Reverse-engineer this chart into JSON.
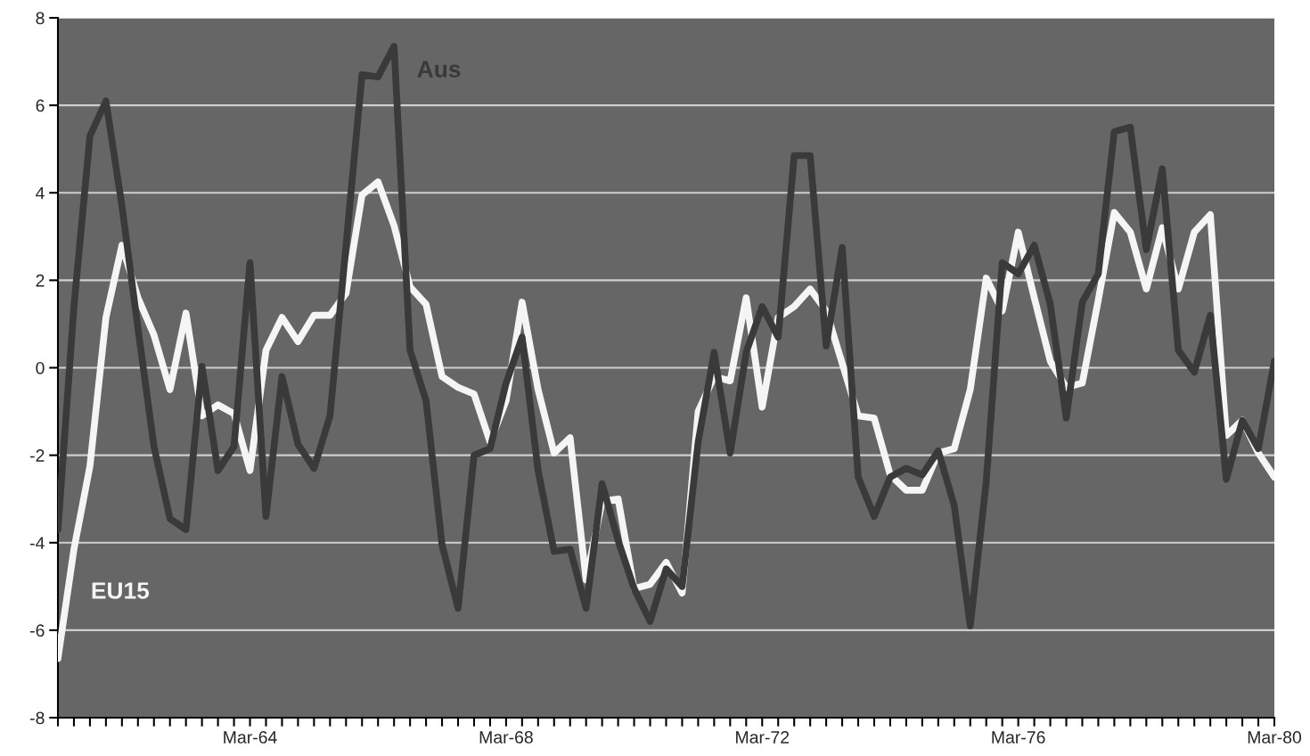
{
  "chart_data": {
    "type": "line",
    "categories": [
      null,
      null,
      null,
      null,
      null,
      null,
      null,
      null,
      null,
      null,
      null,
      null,
      "Mar-64",
      null,
      null,
      null,
      null,
      null,
      null,
      null,
      null,
      null,
      null,
      null,
      null,
      null,
      null,
      null,
      "Mar-68",
      null,
      null,
      null,
      null,
      null,
      null,
      null,
      null,
      null,
      null,
      null,
      null,
      null,
      null,
      null,
      "Mar-72",
      null,
      null,
      null,
      null,
      null,
      null,
      null,
      null,
      null,
      null,
      null,
      null,
      null,
      null,
      null,
      "Mar-76",
      null,
      null,
      null,
      null,
      null,
      null,
      null,
      null,
      null,
      null,
      null,
      null,
      null,
      null,
      null,
      "Mar-80"
    ],
    "series": [
      {
        "name": "Aus",
        "color": "#3a3a3a",
        "values": [
          -3.7,
          1.4,
          5.3,
          6.1,
          3.7,
          0.9,
          -1.8,
          -3.45,
          -3.7,
          0.03,
          -2.35,
          -1.8,
          2.4,
          -3.4,
          -0.2,
          -1.75,
          -2.3,
          -1.1,
          2.8,
          6.7,
          6.65,
          7.35,
          0.4,
          -0.75,
          -4.05,
          -5.5,
          -2.0,
          -1.85,
          -0.35,
          0.7,
          -2.35,
          -4.2,
          -4.15,
          -5.5,
          -2.65,
          -3.95,
          -5.05,
          -5.8,
          -4.6,
          -5.0,
          -1.7,
          0.35,
          -1.95,
          0.35,
          1.4,
          0.7,
          4.85,
          4.85,
          0.5,
          2.75,
          -2.5,
          -3.4,
          -2.5,
          -2.3,
          -2.45,
          -1.9,
          -3.15,
          -5.9,
          -2.6,
          2.4,
          2.15,
          2.8,
          1.45,
          -1.15,
          1.5,
          2.15,
          5.4,
          5.5,
          2.7,
          4.55,
          0.4,
          -0.1,
          1.2,
          -2.55,
          -1.2,
          -1.85,
          0.15
        ]
      },
      {
        "name": "EU15",
        "color": "#f5f5f5",
        "values": [
          -6.65,
          -4.15,
          -2.25,
          1.15,
          2.8,
          1.6,
          0.75,
          -0.5,
          1.25,
          -1.1,
          -0.85,
          -1.05,
          -2.35,
          0.4,
          1.15,
          0.6,
          1.2,
          1.2,
          1.7,
          3.95,
          4.25,
          3.25,
          1.85,
          1.45,
          -0.2,
          -0.45,
          -0.6,
          -1.7,
          -0.75,
          1.5,
          -0.5,
          -1.95,
          -1.6,
          -4.85,
          -3.05,
          -3.0,
          -5.05,
          -4.95,
          -4.45,
          -5.15,
          -1.0,
          -0.2,
          -0.3,
          1.6,
          -0.9,
          1.15,
          1.4,
          1.8,
          1.3,
          0.1,
          -1.1,
          -1.15,
          -2.45,
          -2.8,
          -2.8,
          -1.95,
          -1.85,
          -0.5,
          2.05,
          1.3,
          3.1,
          1.6,
          0.15,
          -0.45,
          -0.35,
          1.55,
          3.55,
          3.1,
          1.8,
          3.2,
          1.8,
          3.1,
          3.5,
          -1.55,
          -1.2,
          -1.95,
          -2.5
        ]
      }
    ],
    "ylim": [
      -8,
      8
    ],
    "yticks": [
      -8,
      -6,
      -4,
      -2,
      0,
      2,
      4,
      6,
      8
    ],
    "grid": "y",
    "legend": false,
    "marker": "none",
    "line_style": "solid"
  }
}
